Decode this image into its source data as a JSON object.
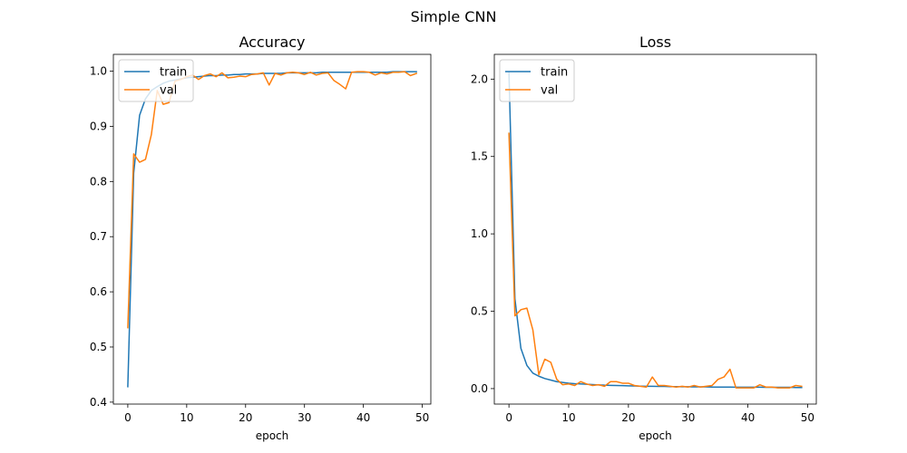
{
  "figure": {
    "title": "Simple CNN"
  },
  "chart_data": [
    {
      "type": "line",
      "title": "Accuracy",
      "xlabel": "epoch",
      "ylabel": "",
      "xlim": [
        -2.45,
        51.45
      ],
      "ylim": [
        0.3965,
        1.0305
      ],
      "xticks": [
        0,
        10,
        20,
        30,
        40,
        50
      ],
      "yticks": [
        0.4,
        0.5,
        0.6,
        0.7,
        0.8,
        0.9,
        1.0
      ],
      "xtick_labels": [
        "0",
        "10",
        "20",
        "30",
        "40",
        "50"
      ],
      "ytick_labels": [
        "0.4",
        "0.5",
        "0.6",
        "0.7",
        "0.8",
        "0.9",
        "1.0"
      ],
      "grid": false,
      "legend": "upper left",
      "x": [
        0,
        1,
        2,
        3,
        4,
        5,
        6,
        7,
        8,
        9,
        10,
        11,
        12,
        13,
        14,
        15,
        16,
        17,
        18,
        19,
        20,
        21,
        22,
        23,
        24,
        25,
        26,
        27,
        28,
        29,
        30,
        31,
        32,
        33,
        34,
        35,
        36,
        37,
        38,
        39,
        40,
        41,
        42,
        43,
        44,
        45,
        46,
        47,
        48,
        49
      ],
      "series": [
        {
          "name": "train",
          "color": "#1f77b4",
          "values": [
            0.428,
            0.815,
            0.92,
            0.95,
            0.965,
            0.972,
            0.978,
            0.982,
            0.984,
            0.986,
            0.988,
            0.989,
            0.99,
            0.991,
            0.992,
            0.992,
            0.993,
            0.993,
            0.994,
            0.994,
            0.995,
            0.995,
            0.995,
            0.996,
            0.996,
            0.996,
            0.996,
            0.997,
            0.997,
            0.997,
            0.997,
            0.997,
            0.997,
            0.998,
            0.998,
            0.998,
            0.998,
            0.998,
            0.998,
            0.998,
            0.998,
            0.998,
            0.998,
            0.998,
            0.998,
            0.999,
            0.999,
            0.999,
            0.999,
            0.999
          ]
        },
        {
          "name": "val",
          "color": "#ff7f0e",
          "values": [
            0.535,
            0.85,
            0.835,
            0.84,
            0.885,
            0.965,
            0.94,
            0.943,
            0.982,
            0.985,
            0.99,
            0.993,
            0.985,
            0.992,
            0.995,
            0.99,
            0.997,
            0.988,
            0.989,
            0.991,
            0.99,
            0.994,
            0.995,
            0.997,
            0.975,
            0.996,
            0.993,
            0.997,
            0.998,
            0.997,
            0.994,
            0.998,
            0.993,
            0.996,
            0.997,
            0.983,
            0.976,
            0.968,
            0.998,
            0.999,
            0.999,
            0.998,
            0.993,
            0.997,
            0.995,
            0.998,
            0.998,
            0.999,
            0.992,
            0.996
          ]
        }
      ]
    },
    {
      "type": "line",
      "title": "Loss",
      "xlabel": "epoch",
      "ylabel": "",
      "xlim": [
        -2.45,
        51.45
      ],
      "ylim": [
        -0.1,
        2.16
      ],
      "xticks": [
        0,
        10,
        20,
        30,
        40,
        50
      ],
      "yticks": [
        0.0,
        0.5,
        1.0,
        1.5,
        2.0
      ],
      "xtick_labels": [
        "0",
        "10",
        "20",
        "30",
        "40",
        "50"
      ],
      "ytick_labels": [
        "0.0",
        "0.5",
        "1.0",
        "1.5",
        "2.0"
      ],
      "grid": false,
      "legend": "upper left",
      "x": [
        0,
        1,
        2,
        3,
        4,
        5,
        6,
        7,
        8,
        9,
        10,
        11,
        12,
        13,
        14,
        15,
        16,
        17,
        18,
        19,
        20,
        21,
        22,
        23,
        24,
        25,
        26,
        27,
        28,
        29,
        30,
        31,
        32,
        33,
        34,
        35,
        36,
        37,
        38,
        39,
        40,
        41,
        42,
        43,
        44,
        45,
        46,
        47,
        48,
        49
      ],
      "series": [
        {
          "name": "train",
          "color": "#1f77b4",
          "values": [
            2.04,
            0.58,
            0.26,
            0.15,
            0.1,
            0.08,
            0.065,
            0.055,
            0.045,
            0.04,
            0.035,
            0.032,
            0.03,
            0.028,
            0.026,
            0.024,
            0.022,
            0.021,
            0.02,
            0.019,
            0.018,
            0.017,
            0.016,
            0.015,
            0.015,
            0.014,
            0.014,
            0.013,
            0.013,
            0.012,
            0.012,
            0.011,
            0.011,
            0.011,
            0.01,
            0.01,
            0.01,
            0.01,
            0.009,
            0.009,
            0.009,
            0.009,
            0.009,
            0.008,
            0.008,
            0.008,
            0.008,
            0.008,
            0.007,
            0.007
          ]
        },
        {
          "name": "val",
          "color": "#ff7f0e",
          "values": [
            1.65,
            0.47,
            0.51,
            0.52,
            0.38,
            0.09,
            0.19,
            0.17,
            0.06,
            0.025,
            0.03,
            0.02,
            0.045,
            0.03,
            0.02,
            0.025,
            0.015,
            0.045,
            0.045,
            0.035,
            0.035,
            0.02,
            0.015,
            0.01,
            0.075,
            0.02,
            0.02,
            0.015,
            0.01,
            0.015,
            0.01,
            0.02,
            0.01,
            0.015,
            0.02,
            0.06,
            0.075,
            0.125,
            0.005,
            0.005,
            0.005,
            0.005,
            0.025,
            0.01,
            0.01,
            0.005,
            0.005,
            0.005,
            0.02,
            0.015
          ]
        }
      ]
    }
  ]
}
